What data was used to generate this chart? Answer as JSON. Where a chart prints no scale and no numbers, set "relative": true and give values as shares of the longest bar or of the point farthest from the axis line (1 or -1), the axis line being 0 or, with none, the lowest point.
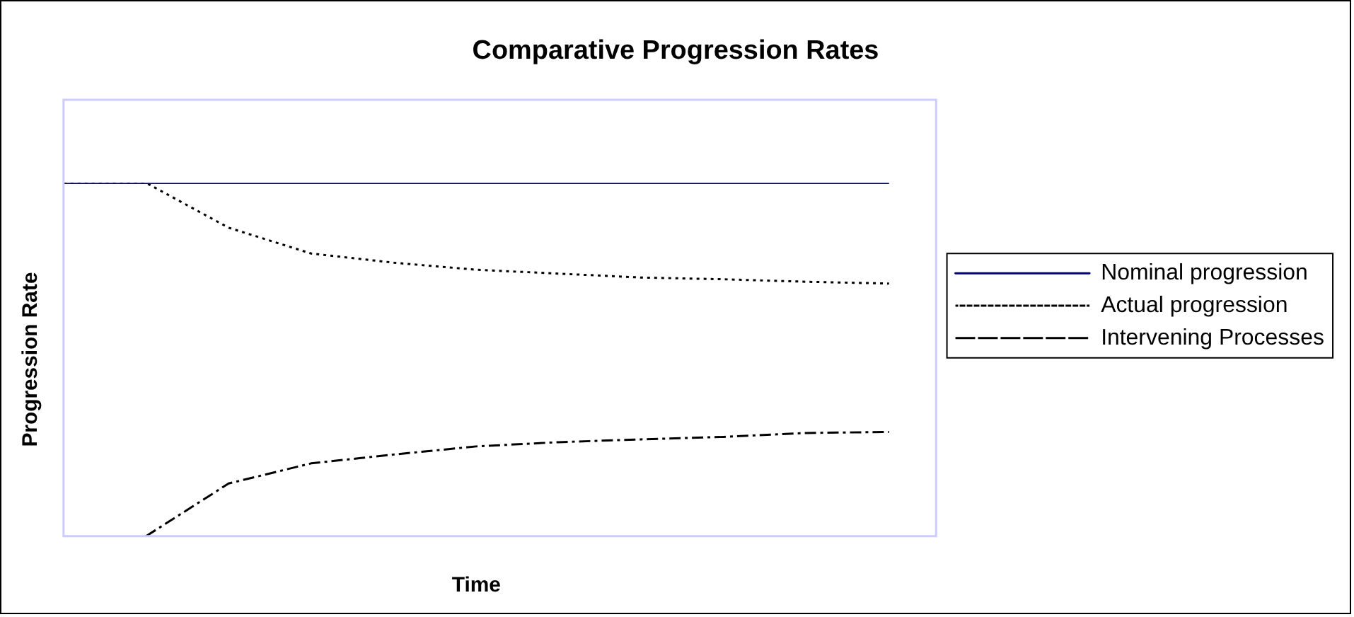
{
  "chart_data": {
    "type": "line",
    "title": "Comparative Progression Rates",
    "xlabel": "Time",
    "ylabel": "Progression Rate",
    "relative": true,
    "categories": [
      null,
      null,
      null,
      null,
      null,
      null,
      null,
      null,
      null,
      null,
      null
    ],
    "series": [
      {
        "name": "Nominal progression",
        "color": "#000080",
        "line_style": "solid",
        "values": [
          1,
          1,
          1,
          1,
          1,
          1,
          1,
          1,
          1,
          1,
          1
        ]
      },
      {
        "name": "Actual progression",
        "color": "#000000",
        "line_style": "dotted",
        "values": [
          1,
          1,
          0.873,
          0.8,
          0.774,
          0.754,
          0.743,
          0.732,
          0.727,
          0.72,
          0.715
        ]
      },
      {
        "name": "Intervening Processes",
        "color": "#000000",
        "line_style": "dashdot",
        "values": [
          null,
          0,
          0.149,
          0.206,
          0.231,
          0.254,
          0.266,
          0.274,
          0.281,
          0.292,
          0.295
        ]
      }
    ],
    "legend": "right",
    "grid": false,
    "marker": "none"
  }
}
